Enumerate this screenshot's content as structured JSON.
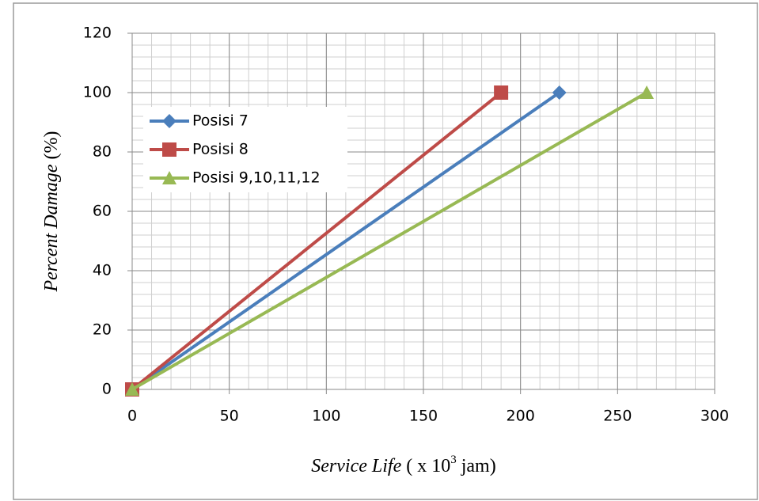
{
  "chart_data": {
    "type": "line",
    "xlabel": [
      "Service Life",
      "( x 10",
      "3",
      " jam)"
    ],
    "ylabel": [
      "Percent Damage",
      " (%)"
    ],
    "series": [
      {
        "name": "Posisi 7",
        "color": "#4a7ebb",
        "marker": "diamond",
        "x": [
          0,
          220
        ],
        "values": [
          0,
          100
        ]
      },
      {
        "name": "Posisi 8",
        "color": "#be4b48",
        "marker": "square",
        "x": [
          0,
          190
        ],
        "values": [
          0,
          100
        ]
      },
      {
        "name": "Posisi 9,10,11,12",
        "color": "#98b954",
        "marker": "triangle",
        "x": [
          0,
          265
        ],
        "values": [
          0,
          100
        ]
      }
    ],
    "xlim": [
      0,
      300
    ],
    "xticks": [
      0,
      50,
      100,
      150,
      200,
      250,
      300
    ],
    "ylim": [
      0,
      120
    ],
    "yticks": [
      0,
      20,
      40,
      60,
      80,
      100,
      120
    ],
    "grid": true,
    "x_minor_step": 10,
    "y_minor_step": 4,
    "legend": "upper left"
  }
}
